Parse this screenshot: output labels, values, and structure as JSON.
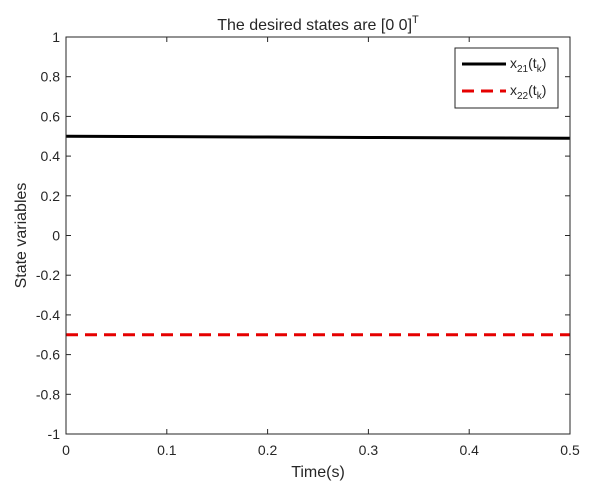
{
  "chart_data": {
    "type": "line",
    "title": "The desired states are [0 0]",
    "title_superscript": "T",
    "xlabel": "Time(s)",
    "ylabel": "State variables",
    "xlim": [
      0,
      0.5
    ],
    "ylim": [
      -1,
      1
    ],
    "xticks": [
      0,
      0.1,
      0.2,
      0.3,
      0.4,
      0.5
    ],
    "xtick_labels": [
      "0",
      "0.1",
      "0.2",
      "0.3",
      "0.4",
      "0.5"
    ],
    "yticks": [
      -1,
      -0.8,
      -0.6,
      -0.4,
      -0.2,
      0,
      0.2,
      0.4,
      0.6,
      0.8,
      1
    ],
    "ytick_labels": [
      "-1",
      "-0.8",
      "-0.6",
      "-0.4",
      "-0.2",
      "0",
      "0.2",
      "0.4",
      "0.6",
      "0.8",
      "1"
    ],
    "grid": false,
    "legend_position": "top-right",
    "series": [
      {
        "legend_base": "x",
        "legend_sub": "21",
        "legend_mid": "(t",
        "legend_sub2": "k",
        "legend_end": ")",
        "color": "#000000",
        "dash": "solid",
        "x": [
          0,
          0.1,
          0.2,
          0.3,
          0.4,
          0.5
        ],
        "y": [
          0.5,
          0.498,
          0.496,
          0.494,
          0.492,
          0.49
        ]
      },
      {
        "legend_base": "x",
        "legend_sub": "22",
        "legend_mid": "(t",
        "legend_sub2": "k",
        "legend_end": ")",
        "color": "#e50000",
        "dash": "dashed",
        "x": [
          0,
          0.1,
          0.2,
          0.3,
          0.4,
          0.5
        ],
        "y": [
          -0.5,
          -0.5,
          -0.5,
          -0.5,
          -0.5,
          -0.5
        ]
      }
    ]
  }
}
